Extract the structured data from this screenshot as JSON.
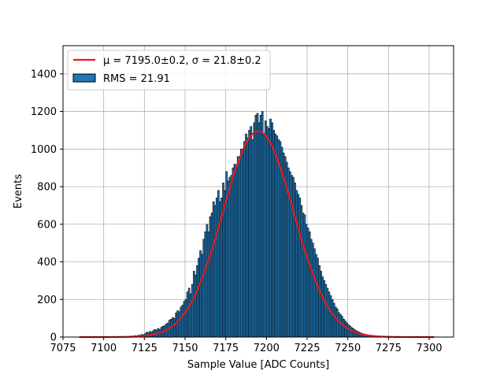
{
  "chart_data": {
    "type": "bar",
    "title": "",
    "xlabel": "Sample Value [ADC Counts]",
    "ylabel": "Events",
    "xlim": [
      7075,
      7315
    ],
    "ylim": [
      0,
      1550
    ],
    "grid": true,
    "legend_placement": "upper-left",
    "x_ticks": [
      7075,
      7100,
      7125,
      7150,
      7175,
      7200,
      7225,
      7250,
      7275,
      7300
    ],
    "y_ticks": [
      0,
      200,
      400,
      600,
      800,
      1000,
      1200,
      1400
    ],
    "histogram": {
      "name": "RMS = 21.91",
      "color": "#1f77b4",
      "edge_color": "#000000",
      "bin_width": 1,
      "bins_x": [
        7115,
        7116,
        7117,
        7118,
        7119,
        7120,
        7121,
        7122,
        7123,
        7124,
        7125,
        7126,
        7127,
        7128,
        7129,
        7130,
        7131,
        7132,
        7133,
        7134,
        7135,
        7136,
        7137,
        7138,
        7139,
        7140,
        7141,
        7142,
        7143,
        7144,
        7145,
        7146,
        7147,
        7148,
        7149,
        7150,
        7151,
        7152,
        7153,
        7154,
        7155,
        7156,
        7157,
        7158,
        7159,
        7160,
        7161,
        7162,
        7163,
        7164,
        7165,
        7166,
        7167,
        7168,
        7169,
        7170,
        7171,
        7172,
        7173,
        7174,
        7175,
        7176,
        7177,
        7178,
        7179,
        7180,
        7181,
        7182,
        7183,
        7184,
        7185,
        7186,
        7187,
        7188,
        7189,
        7190,
        7191,
        7192,
        7193,
        7194,
        7195,
        7196,
        7197,
        7198,
        7199,
        7200,
        7201,
        7202,
        7203,
        7204,
        7205,
        7206,
        7207,
        7208,
        7209,
        7210,
        7211,
        7212,
        7213,
        7214,
        7215,
        7216,
        7217,
        7218,
        7219,
        7220,
        7221,
        7222,
        7223,
        7224,
        7225,
        7226,
        7227,
        7228,
        7229,
        7230,
        7231,
        7232,
        7233,
        7234,
        7235,
        7236,
        7237,
        7238,
        7239,
        7240,
        7241,
        7242,
        7243,
        7244,
        7245,
        7246,
        7247,
        7248,
        7249,
        7250,
        7251,
        7252,
        7253,
        7254,
        7255,
        7256,
        7257,
        7258,
        7259,
        7260,
        7261,
        7262,
        7263,
        7264,
        7265,
        7266,
        7267,
        7268,
        7269,
        7270,
        7271,
        7272,
        7273,
        7274,
        7275
      ],
      "counts": [
        4,
        3,
        6,
        5,
        8,
        5,
        10,
        9,
        14,
        12,
        18,
        26,
        22,
        30,
        26,
        34,
        40,
        38,
        46,
        40,
        52,
        58,
        60,
        70,
        75,
        90,
        95,
        104,
        98,
        128,
        140,
        135,
        160,
        170,
        190,
        200,
        240,
        260,
        230,
        280,
        350,
        330,
        380,
        420,
        460,
        440,
        520,
        560,
        600,
        560,
        640,
        660,
        720,
        700,
        740,
        780,
        720,
        740,
        820,
        780,
        880,
        830,
        850,
        860,
        900,
        920,
        910,
        960,
        940,
        1000,
        1000,
        1040,
        1080,
        1060,
        1100,
        1120,
        1050,
        1140,
        1180,
        1190,
        1140,
        1180,
        1200,
        1080,
        1150,
        1120,
        1110,
        1160,
        1140,
        1100,
        1080,
        1070,
        1050,
        1040,
        1010,
        980,
        960,
        930,
        900,
        880,
        860,
        850,
        820,
        780,
        760,
        740,
        700,
        660,
        650,
        600,
        580,
        560,
        520,
        500,
        470,
        440,
        420,
        380,
        350,
        320,
        300,
        280,
        260,
        240,
        220,
        200,
        180,
        160,
        150,
        130,
        120,
        110,
        95,
        85,
        75,
        65,
        58,
        50,
        44,
        38,
        32,
        28,
        24,
        20,
        17,
        14,
        12,
        10,
        8,
        6,
        5,
        4,
        3,
        3,
        2,
        2,
        1,
        1,
        1,
        1,
        0,
        0,
        0
      ]
    },
    "fit": {
      "name": "μ = 7195.0±0.2, σ = 21.8±0.2",
      "color": "#e31a1c",
      "mu": 7195.0,
      "sigma": 21.8,
      "amplitude": 1095,
      "x_range": [
        7085,
        7303
      ]
    }
  },
  "legend": {
    "fit_label": "μ = 7195.0±0.2, σ = 21.8±0.2",
    "hist_label": "RMS = 21.91"
  }
}
